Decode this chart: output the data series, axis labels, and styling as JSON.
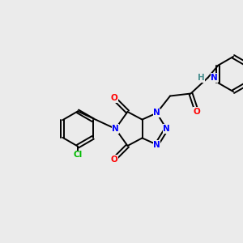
{
  "background_color": "#ebebeb",
  "figsize": [
    3.0,
    3.0
  ],
  "dpi": 100,
  "bond_color": "#000000",
  "colors": {
    "N": "#0000ff",
    "O": "#ff0000",
    "Cl": "#00bb00",
    "C": "#000000",
    "H": "#4a9090"
  },
  "font_size": 7.5,
  "lw": 1.4
}
